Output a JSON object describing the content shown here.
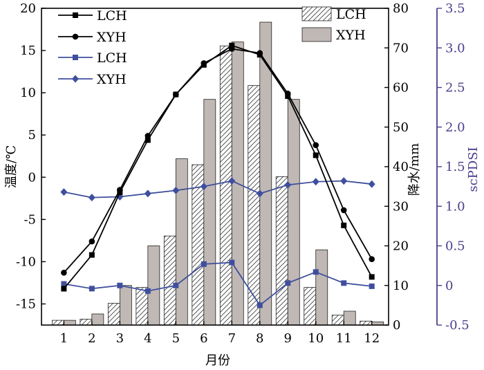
{
  "chart_data": {
    "type": "bar+line",
    "x_categories": [
      "1",
      "2",
      "3",
      "4",
      "5",
      "6",
      "7",
      "8",
      "9",
      "10",
      "11",
      "12"
    ],
    "xlabel": "月份",
    "temp_axis": {
      "label": "温度/℃",
      "ylim": [
        -17.5,
        20
      ],
      "ticks": [
        -15,
        -10,
        -5,
        0,
        5,
        10,
        15,
        20
      ]
    },
    "precip_axis": {
      "label": "降水/mm",
      "ylim": [
        0,
        80
      ],
      "ticks": [
        0,
        10,
        20,
        30,
        40,
        50,
        60,
        70,
        80
      ]
    },
    "scpdsi_axis": {
      "label": "scPDSI",
      "ylim": [
        -0.5,
        3.5
      ],
      "ticks": [
        "-0.5",
        "0",
        "0.5",
        "1.0",
        "1.5",
        "2.0",
        "2.5",
        "3.0",
        "3.5"
      ],
      "color": "#4a3f8c"
    },
    "bar_series": [
      {
        "name": "LCH",
        "pattern": "hatch",
        "values": [
          1.2,
          1.5,
          5.5,
          9.5,
          22.5,
          40.5,
          70.5,
          60.5,
          37.5,
          9.5,
          2.5,
          1.0
        ]
      },
      {
        "name": "XYH",
        "fill": "#c0b8b4",
        "values": [
          1.2,
          2.8,
          10.0,
          20.0,
          42.0,
          57.0,
          71.5,
          76.5,
          57.0,
          19.0,
          3.5,
          0.8
        ]
      }
    ],
    "temp_series": [
      {
        "name": "LCH",
        "marker": "square",
        "color": "#000000",
        "values": [
          -13.2,
          -9.2,
          -1.8,
          4.4,
          9.8,
          13.3,
          15.6,
          14.5,
          9.6,
          2.6,
          -5.7,
          -11.8
        ]
      },
      {
        "name": "XYH",
        "marker": "circle",
        "color": "#000000",
        "values": [
          -11.3,
          -7.6,
          -1.5,
          4.9,
          9.8,
          13.5,
          15.2,
          14.7,
          9.9,
          3.8,
          -3.9,
          -9.7
        ]
      }
    ],
    "scpdsi_series": [
      {
        "name": "LCH",
        "marker": "square",
        "color": "#3f4f9e",
        "values": [
          0.02,
          -0.04,
          0.0,
          -0.07,
          0.0,
          0.27,
          0.29,
          -0.25,
          0.03,
          0.17,
          0.03,
          -0.01
        ]
      },
      {
        "name": "XYH",
        "marker": "diamond",
        "color": "#3f4f9e",
        "values": [
          1.18,
          1.11,
          1.12,
          1.16,
          1.2,
          1.25,
          1.32,
          1.16,
          1.27,
          1.31,
          1.32,
          1.28
        ]
      }
    ]
  }
}
